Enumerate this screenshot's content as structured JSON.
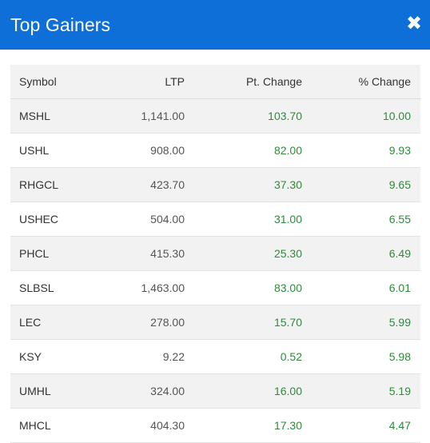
{
  "modal": {
    "title": "Top Gainers",
    "close_glyph": "✖"
  },
  "table": {
    "headers": {
      "symbol": "Symbol",
      "ltp": "LTP",
      "pt_change": "Pt. Change",
      "pct_change": "% Change"
    },
    "rows": [
      {
        "symbol": "MSHL",
        "ltp": "1,141.00",
        "pt_change": "103.70",
        "pct_change": "10.00"
      },
      {
        "symbol": "USHL",
        "ltp": "908.00",
        "pt_change": "82.00",
        "pct_change": "9.93"
      },
      {
        "symbol": "RHGCL",
        "ltp": "423.70",
        "pt_change": "37.30",
        "pct_change": "9.65"
      },
      {
        "symbol": "USHEC",
        "ltp": "504.00",
        "pt_change": "31.00",
        "pct_change": "6.55"
      },
      {
        "symbol": "PHCL",
        "ltp": "415.30",
        "pt_change": "25.30",
        "pct_change": "6.49"
      },
      {
        "symbol": "SLBSL",
        "ltp": "1,463.00",
        "pt_change": "83.00",
        "pct_change": "6.01"
      },
      {
        "symbol": "LEC",
        "ltp": "278.00",
        "pt_change": "15.70",
        "pct_change": "5.99"
      },
      {
        "symbol": "KSY",
        "ltp": "9.22",
        "pt_change": "0.52",
        "pct_change": "5.98"
      },
      {
        "symbol": "UMHL",
        "ltp": "324.00",
        "pt_change": "16.00",
        "pct_change": "5.19"
      },
      {
        "symbol": "MHCL",
        "ltp": "404.30",
        "pt_change": "17.30",
        "pct_change": "4.47"
      }
    ]
  },
  "colors": {
    "header_bg": "#0f6fd9",
    "gain_text": "#2e8b3a",
    "stripe_bg": "#f2f2f2"
  }
}
